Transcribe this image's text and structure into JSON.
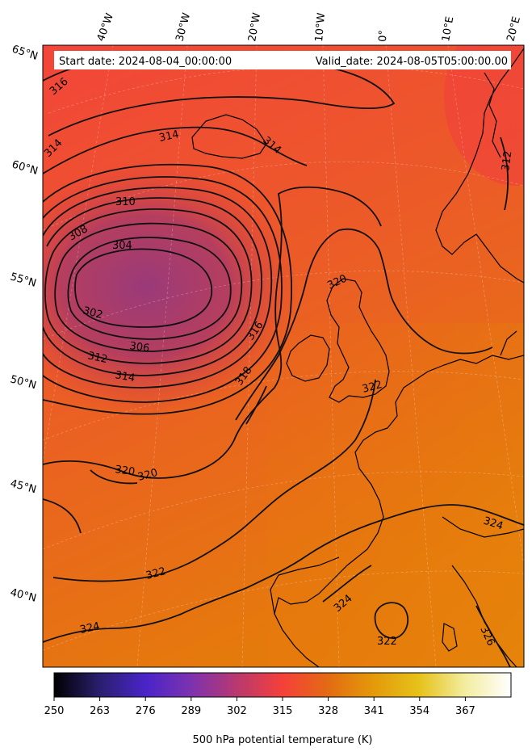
{
  "header": {
    "start_date": "Start date: 2024-08-04_00:00:00",
    "valid_date": "Valid_date: 2024-08-05T05:00:00.00"
  },
  "graticule": {
    "lon_labels": [
      "40°W",
      "30°W",
      "20°W",
      "10°W",
      "0°",
      "10°E",
      "20°E"
    ],
    "lat_labels": [
      "65°N",
      "60°N",
      "55°N",
      "50°N",
      "45°N",
      "40°N"
    ]
  },
  "contour_labels": [
    "316",
    "314",
    "314",
    "314",
    "312",
    "310",
    "308",
    "304",
    "302",
    "306",
    "312",
    "314",
    "316",
    "318",
    "320",
    "320",
    "320",
    "322",
    "322",
    "324",
    "324",
    "324",
    "326",
    "322"
  ],
  "colorbar": {
    "title": "500 hPa potential temperature (K)",
    "ticks": [
      "250",
      "263",
      "276",
      "289",
      "302",
      "315",
      "328",
      "341",
      "354",
      "367"
    ],
    "colors": [
      "#000000",
      "#2a1f6e",
      "#4a24c8",
      "#7d32b0",
      "#b8396e",
      "#f5403a",
      "#e36b12",
      "#e49a0a",
      "#e6c21a",
      "#f3eda0",
      "#ffffff"
    ]
  }
}
